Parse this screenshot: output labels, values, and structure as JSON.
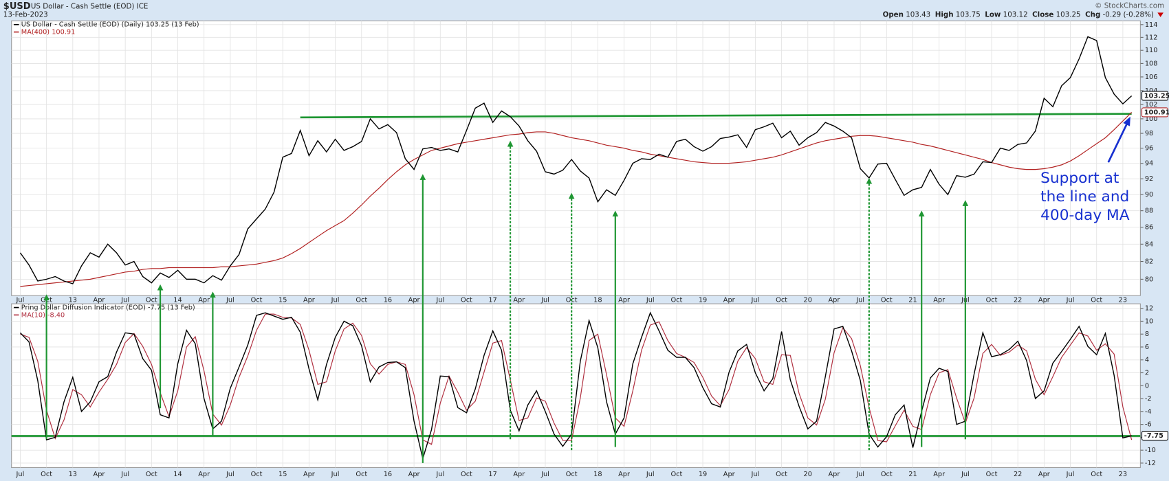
{
  "header": {
    "symbol": "$USD",
    "name": "US Dollar - Cash Settle (EOD) ICE",
    "date": "13-Feb-2023",
    "credit": "© StockCharts.com",
    "quote": [
      [
        "Open",
        "103.43"
      ],
      [
        "High",
        "103.75"
      ],
      [
        "Low",
        "103.12"
      ],
      [
        "Close",
        "103.25"
      ],
      [
        "Chg",
        "-0.29 (-0.28%)"
      ]
    ]
  },
  "chart_data": [
    {
      "type": "line",
      "log_scale": true,
      "grid": true,
      "x": [
        "2012-07",
        "2012-08",
        "2012-09",
        "2012-10",
        "2012-11",
        "2012-12",
        "2013-01",
        "2013-02",
        "2013-03",
        "2013-04",
        "2013-05",
        "2013-06",
        "2013-07",
        "2013-08",
        "2013-09",
        "2013-10",
        "2013-11",
        "2013-12",
        "2014-01",
        "2014-02",
        "2014-03",
        "2014-04",
        "2014-05",
        "2014-06",
        "2014-07",
        "2014-08",
        "2014-09",
        "2014-10",
        "2014-11",
        "2014-12",
        "2015-01",
        "2015-02",
        "2015-03",
        "2015-04",
        "2015-05",
        "2015-06",
        "2015-07",
        "2015-08",
        "2015-09",
        "2015-10",
        "2015-11",
        "2015-12",
        "2016-01",
        "2016-02",
        "2016-03",
        "2016-04",
        "2016-05",
        "2016-06",
        "2016-07",
        "2016-08",
        "2016-09",
        "2016-10",
        "2016-11",
        "2016-12",
        "2017-01",
        "2017-02",
        "2017-03",
        "2017-04",
        "2017-05",
        "2017-06",
        "2017-07",
        "2017-08",
        "2017-09",
        "2017-10",
        "2017-11",
        "2017-12",
        "2018-01",
        "2018-02",
        "2018-03",
        "2018-04",
        "2018-05",
        "2018-06",
        "2018-07",
        "2018-08",
        "2018-09",
        "2018-10",
        "2018-11",
        "2018-12",
        "2019-01",
        "2019-02",
        "2019-03",
        "2019-04",
        "2019-05",
        "2019-06",
        "2019-07",
        "2019-08",
        "2019-09",
        "2019-10",
        "2019-11",
        "2019-12",
        "2020-01",
        "2020-02",
        "2020-03",
        "2020-04",
        "2020-05",
        "2020-06",
        "2020-07",
        "2020-08",
        "2020-09",
        "2020-10",
        "2020-11",
        "2020-12",
        "2021-01",
        "2021-02",
        "2021-03",
        "2021-04",
        "2021-05",
        "2021-06",
        "2021-07",
        "2021-08",
        "2021-09",
        "2021-10",
        "2021-11",
        "2021-12",
        "2022-01",
        "2022-02",
        "2022-03",
        "2022-04",
        "2022-05",
        "2022-06",
        "2022-07",
        "2022-08",
        "2022-09",
        "2022-10",
        "2022-11",
        "2022-12",
        "2023-01",
        "2023-02"
      ],
      "series": [
        {
          "name": "US Dollar - Cash Settle (EOD) (Daily) 103.25 (13 Feb)",
          "color": "#000000",
          "last_label": "103.25",
          "values": [
            83.0,
            81.6,
            79.8,
            80.0,
            80.3,
            79.8,
            79.5,
            81.5,
            83.0,
            82.5,
            84.0,
            83.0,
            81.6,
            82.0,
            80.3,
            79.6,
            80.7,
            80.2,
            81.0,
            80.0,
            80.0,
            79.6,
            80.4,
            79.9,
            81.5,
            82.8,
            85.8,
            87.0,
            88.2,
            90.3,
            94.8,
            95.3,
            98.4,
            95.0,
            97.0,
            95.5,
            97.2,
            95.7,
            96.2,
            96.9,
            100.0,
            98.6,
            99.2,
            98.1,
            94.6,
            93.2,
            95.9,
            96.1,
            95.7,
            95.9,
            95.5,
            98.4,
            101.5,
            102.2,
            99.5,
            101.1,
            100.3,
            99.0,
            97.0,
            95.6,
            92.9,
            92.6,
            93.1,
            94.5,
            93.0,
            92.1,
            89.1,
            90.6,
            89.9,
            91.8,
            94.0,
            94.6,
            94.5,
            95.2,
            94.8,
            96.9,
            97.2,
            96.2,
            95.6,
            96.2,
            97.3,
            97.5,
            97.8,
            96.1,
            98.5,
            98.9,
            99.4,
            97.4,
            98.3,
            96.4,
            97.4,
            98.1,
            99.5,
            99.0,
            98.3,
            97.4,
            93.3,
            92.1,
            93.9,
            94.0,
            91.9,
            89.9,
            90.6,
            90.9,
            93.2,
            91.3,
            90.0,
            92.4,
            92.2,
            92.6,
            94.2,
            94.1,
            96.0,
            95.7,
            96.5,
            96.7,
            98.3,
            102.9,
            101.7,
            104.7,
            105.9,
            108.7,
            112.1,
            111.5,
            105.9,
            103.5,
            102.1,
            103.25
          ]
        },
        {
          "name": "MA(400) 100.91",
          "color": "#b22222",
          "last_label": "100.91",
          "values": [
            79.2,
            79.3,
            79.4,
            79.5,
            79.6,
            79.7,
            79.8,
            79.9,
            80.0,
            80.2,
            80.4,
            80.6,
            80.8,
            80.9,
            81.1,
            81.2,
            81.2,
            81.3,
            81.3,
            81.3,
            81.3,
            81.3,
            81.3,
            81.4,
            81.4,
            81.5,
            81.6,
            81.7,
            81.9,
            82.1,
            82.4,
            82.9,
            83.5,
            84.2,
            84.9,
            85.6,
            86.2,
            86.8,
            87.7,
            88.7,
            89.8,
            90.8,
            91.9,
            92.9,
            93.8,
            94.5,
            95.1,
            95.7,
            96.0,
            96.3,
            96.6,
            96.8,
            97.0,
            97.2,
            97.4,
            97.6,
            97.8,
            97.9,
            98.1,
            98.2,
            98.2,
            98.0,
            97.7,
            97.4,
            97.2,
            97.0,
            96.7,
            96.4,
            96.2,
            96.0,
            95.7,
            95.5,
            95.2,
            95.0,
            94.8,
            94.6,
            94.4,
            94.2,
            94.1,
            94.0,
            94.0,
            94.0,
            94.1,
            94.2,
            94.4,
            94.6,
            94.8,
            95.1,
            95.5,
            95.9,
            96.3,
            96.7,
            97.0,
            97.2,
            97.4,
            97.6,
            97.7,
            97.7,
            97.6,
            97.4,
            97.2,
            97.0,
            96.8,
            96.5,
            96.3,
            96.0,
            95.7,
            95.4,
            95.1,
            94.8,
            94.5,
            94.1,
            93.8,
            93.5,
            93.3,
            93.2,
            93.2,
            93.3,
            93.5,
            93.8,
            94.3,
            95.0,
            95.8,
            96.6,
            97.4,
            98.5,
            99.7,
            100.91
          ]
        }
      ],
      "xlim": [
        "2012-06",
        "2023-03"
      ],
      "xticks": [
        {
          "value": "2012-07",
          "label": "Jul"
        },
        {
          "value": "2012-10",
          "label": "Oct"
        },
        {
          "value": "2013-01",
          "label": "13"
        },
        {
          "value": "2013-04",
          "label": "Apr"
        },
        {
          "value": "2013-07",
          "label": "Jul"
        },
        {
          "value": "2013-10",
          "label": "Oct"
        },
        {
          "value": "2014-01",
          "label": "14"
        },
        {
          "value": "2014-04",
          "label": "Apr"
        },
        {
          "value": "2014-07",
          "label": "Jul"
        },
        {
          "value": "2014-10",
          "label": "Oct"
        },
        {
          "value": "2015-01",
          "label": "15"
        },
        {
          "value": "2015-04",
          "label": "Apr"
        },
        {
          "value": "2015-07",
          "label": "Jul"
        },
        {
          "value": "2015-10",
          "label": "Oct"
        },
        {
          "value": "2016-01",
          "label": "16"
        },
        {
          "value": "2016-04",
          "label": "Apr"
        },
        {
          "value": "2016-07",
          "label": "Jul"
        },
        {
          "value": "2016-10",
          "label": "Oct"
        },
        {
          "value": "2017-01",
          "label": "17"
        },
        {
          "value": "2017-04",
          "label": "Apr"
        },
        {
          "value": "2017-07",
          "label": "Jul"
        },
        {
          "value": "2017-10",
          "label": "Oct"
        },
        {
          "value": "2018-01",
          "label": "18"
        },
        {
          "value": "2018-04",
          "label": "Apr"
        },
        {
          "value": "2018-07",
          "label": "Jul"
        },
        {
          "value": "2018-10",
          "label": "Oct"
        },
        {
          "value": "2019-01",
          "label": "19"
        },
        {
          "value": "2019-04",
          "label": "Apr"
        },
        {
          "value": "2019-07",
          "label": "Jul"
        },
        {
          "value": "2019-10",
          "label": "Oct"
        },
        {
          "value": "2020-01",
          "label": "20"
        },
        {
          "value": "2020-04",
          "label": "Apr"
        },
        {
          "value": "2020-07",
          "label": "Jul"
        },
        {
          "value": "2020-10",
          "label": "Oct"
        },
        {
          "value": "2021-01",
          "label": "21"
        },
        {
          "value": "2021-04",
          "label": "Apr"
        },
        {
          "value": "2021-07",
          "label": "Jul"
        },
        {
          "value": "2021-10",
          "label": "Oct"
        },
        {
          "value": "2022-01",
          "label": "22"
        },
        {
          "value": "2022-04",
          "label": "Apr"
        },
        {
          "value": "2022-07",
          "label": "Jul"
        },
        {
          "value": "2022-10",
          "label": "Oct"
        },
        {
          "value": "2023-01",
          "label": "23"
        }
      ],
      "ylim": [
        78.2,
        114.6
      ],
      "yticks": [
        80,
        82,
        84,
        86,
        88,
        90,
        92,
        94,
        96,
        98,
        100,
        102,
        104,
        106,
        108,
        110,
        112,
        114
      ],
      "support_line": {
        "x": [
          "2015-03",
          "2023-02"
        ],
        "values": [
          100.2,
          100.7
        ],
        "color": "#1e9632"
      },
      "arrows": [
        {
          "x": "2012-10",
          "from": -8.3,
          "to": 78.5,
          "dashed": false
        },
        {
          "x": "2013-11",
          "from": -3.5,
          "to": 79.6,
          "dashed": false
        },
        {
          "x": "2014-05",
          "from": -7.7,
          "to": 78.8,
          "dashed": false
        },
        {
          "x": "2016-05",
          "from": -12,
          "to": 92.8,
          "dashed": false
        },
        {
          "x": "2017-03",
          "from": -8.3,
          "to": 97.2,
          "dashed": true
        },
        {
          "x": "2017-10",
          "from": -10,
          "to": 90.4,
          "dashed": true
        },
        {
          "x": "2018-03",
          "from": -9.5,
          "to": 88.2,
          "dashed": false
        },
        {
          "x": "2020-08",
          "from": -10,
          "to": 92.3,
          "dashed": true
        },
        {
          "x": "2021-02",
          "from": -9.5,
          "to": 88.2,
          "dashed": false
        },
        {
          "x": "2021-07",
          "from": -8.3,
          "to": 89.5,
          "dashed": false
        }
      ],
      "annotation": [
        "Support at",
        "the line and",
        "400-day MA"
      ]
    },
    {
      "type": "line",
      "grid": true,
      "x_from": "chart_data.0.x",
      "series": [
        {
          "name": "Pring Dollar Diffusion Indicator (EOD) -7.75 (13 Feb)",
          "color": "#000000",
          "last_label": "-7.75",
          "values": [
            8.2,
            6.8,
            0.8,
            -8.4,
            -8,
            -2.5,
            1.3,
            -4,
            -2.5,
            0.6,
            1.4,
            5.2,
            8.2,
            8,
            4.2,
            2.4,
            -4.5,
            -5,
            3.4,
            8.6,
            6.5,
            -2,
            -6.7,
            -5.5,
            -0.4,
            2.9,
            6.3,
            10.9,
            11.3,
            10.8,
            10.3,
            10.6,
            8.3,
            2.6,
            -2.2,
            3.3,
            7.5,
            10.0,
            9.3,
            6.2,
            0.6,
            2.9,
            3.6,
            3.7,
            2.8,
            -5.5,
            -11.3,
            -6.8,
            1.5,
            1.4,
            -3.4,
            -4.2,
            -0.5,
            4.7,
            8.5,
            5.5,
            -3.8,
            -7,
            -3,
            -0.8,
            -4.0,
            -7.5,
            -9.4,
            -7.5,
            3.8,
            10.1,
            5.9,
            -2.5,
            -7.5,
            -5,
            3.4,
            7.5,
            11.3,
            8.5,
            5.5,
            4.4,
            4.4,
            2.8,
            -0.3,
            -2.8,
            -3.3,
            2.1,
            5.4,
            6.4,
            2,
            -0.8,
            1.1,
            8.4,
            0.9,
            -3.2,
            -6.7,
            -5.5,
            1.4,
            8.8,
            9.2,
            5.4,
            0.8,
            -7.5,
            -9.5,
            -7.9,
            -4.5,
            -3,
            -9.6,
            -4,
            1.2,
            2.7,
            2.2,
            -6,
            -5.5,
            1.8,
            8.2,
            4.5,
            4.8,
            5.6,
            6.9,
            3.9,
            -2.0,
            -0.8,
            3.5,
            5.3,
            7.2,
            9.2,
            6.1,
            4.8,
            8.1,
            1.6,
            -8.1,
            -7.75
          ]
        },
        {
          "name": "MA(10) -8.40",
          "color": "#b03040",
          "values": [
            8.0,
            7.5,
            3.8,
            -3.8,
            -8.2,
            -5.3,
            -0.6,
            -1.4,
            -3.3,
            -1.0,
            1.0,
            3.3,
            6.7,
            8.1,
            6.1,
            3.3,
            -1.1,
            -4.8,
            -0.8,
            6.0,
            7.6,
            2.3,
            -4.4,
            -6.1,
            -3.0,
            1.3,
            4.6,
            8.6,
            11.1,
            11.1,
            10.6,
            10.5,
            9.5,
            5.5,
            0.2,
            0.6,
            5.4,
            8.8,
            9.7,
            7.8,
            3.4,
            1.8,
            3.3,
            3.7,
            3.3,
            -1.4,
            -8.4,
            -9.1,
            -2.7,
            1.5,
            -1.0,
            -3.8,
            -2.4,
            2.1,
            6.6,
            7.0,
            0.9,
            -5.4,
            -5.0,
            -1.9,
            -2.4,
            -5.8,
            -8.5,
            -8.5,
            -1.9,
            7.0,
            8.0,
            1.7,
            -5.0,
            -6.3,
            -0.8,
            5.5,
            9.4,
            9.9,
            7.0,
            5.0,
            4.4,
            3.6,
            1.3,
            -1.6,
            -3.1,
            -0.6,
            3.8,
            5.9,
            4.2,
            0.6,
            0.2,
            4.8,
            4.7,
            -1.2,
            -5.0,
            -6.1,
            -2.1,
            5.1,
            9.0,
            7.3,
            3.1,
            -3.4,
            -8.5,
            -8.7,
            -6.2,
            -3.8,
            -6.3,
            -6.8,
            -1.4,
            2.0,
            2.5,
            -1.9,
            -5.8,
            -1.9,
            5.0,
            6.4,
            4.7,
            5.2,
            6.3,
            5.4,
            1.0,
            -1.4,
            1.4,
            4.4,
            6.3,
            8.2,
            7.7,
            5.5,
            6.5,
            4.9,
            -3.3,
            -8.4
          ]
        }
      ],
      "xlim": [
        "2012-06",
        "2023-03"
      ],
      "ylim": [
        -12.7,
        12.7
      ],
      "yticks": [
        -12,
        -10,
        -8,
        -6,
        -4,
        -2,
        0,
        2,
        4,
        6,
        8,
        10,
        12
      ],
      "support_line": {
        "x": [
          "2012-06",
          "2023-03"
        ],
        "values": [
          -7.8,
          -7.8
        ],
        "color": "#1e9632"
      }
    }
  ]
}
